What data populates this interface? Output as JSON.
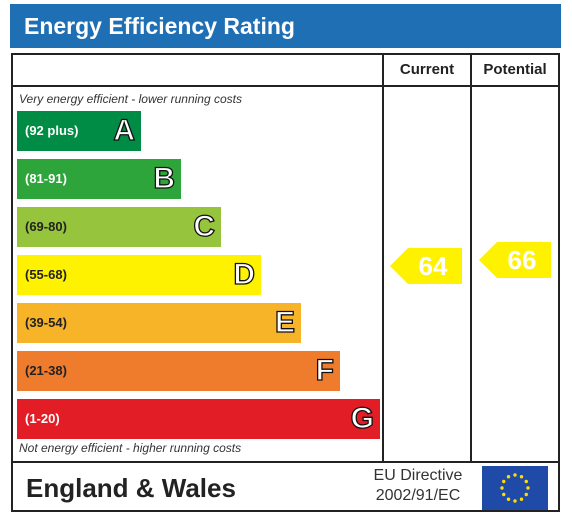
{
  "header": {
    "title": "Energy Efficiency Rating"
  },
  "columns": {
    "current": "Current",
    "potential": "Potential"
  },
  "notes": {
    "top": "Very energy efficient - lower running costs",
    "bottom": "Not energy efficient - higher running costs"
  },
  "bands": [
    {
      "range": "(92 plus)",
      "letter": "A",
      "color": "#008c44",
      "text_color": "#ffffff"
    },
    {
      "range": "(81-91)",
      "letter": "B",
      "color": "#2ea53a",
      "text_color": "#ffffff"
    },
    {
      "range": "(69-80)",
      "letter": "C",
      "color": "#97c43d",
      "text_color": "#222222"
    },
    {
      "range": "(55-68)",
      "letter": "D",
      "color": "#fff200",
      "text_color": "#222222"
    },
    {
      "range": "(39-54)",
      "letter": "E",
      "color": "#f7b428",
      "text_color": "#222222"
    },
    {
      "range": "(21-38)",
      "letter": "F",
      "color": "#ef7b2c",
      "text_color": "#222222"
    },
    {
      "range": "(1-20)",
      "letter": "G",
      "color": "#e31d25",
      "text_color": "#ffffff"
    }
  ],
  "ratings": {
    "current": "64",
    "potential": "66",
    "arrow_color": "#fff200"
  },
  "footer": {
    "region": "England & Wales",
    "directive_line1": "EU Directive",
    "directive_line2": "2002/91/EC",
    "flag_color": "#1f4aa8",
    "star_color": "#ffdd00"
  }
}
